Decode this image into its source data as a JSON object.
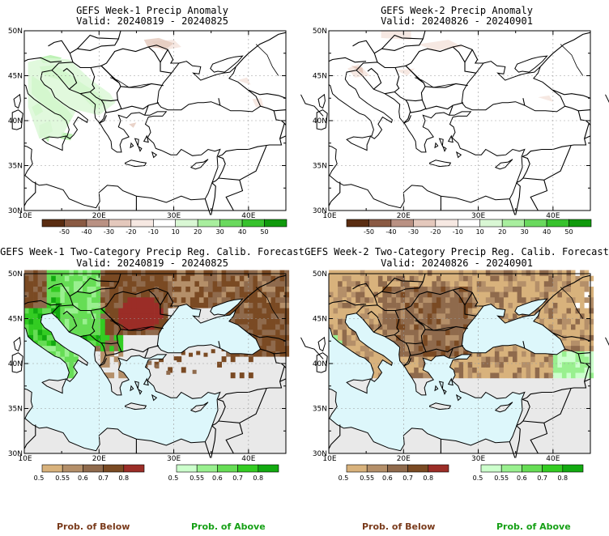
{
  "panels": [
    {
      "id": "p1",
      "title": "GEFS Week-1 Precip Anomaly",
      "valid": "Valid: 20240819 - 20240825",
      "kind": "anomaly"
    },
    {
      "id": "p2",
      "title": "GEFS Week-2 Precip Anomaly",
      "valid": "Valid: 20240826 - 20240901",
      "kind": "anomaly"
    },
    {
      "id": "p3",
      "title": "GEFS Week-1 Two-Category Precip Reg. Calib. Forecast",
      "valid": "Valid: 20240819 - 20240825",
      "kind": "prob"
    },
    {
      "id": "p4",
      "title": "GEFS Week-2 Two-Category Precip Reg. Calib. Forecast",
      "valid": "Valid: 20240826 - 20240901",
      "kind": "prob"
    }
  ],
  "map": {
    "lon_labels": [
      "10E",
      "20E",
      "30E",
      "40E"
    ],
    "lat_labels": [
      "50N",
      "45N",
      "40N",
      "35N",
      "30N"
    ]
  },
  "anomaly_colorbar": {
    "labels": [
      "-50",
      "-40",
      "-30",
      "-20",
      "-10",
      "10",
      "20",
      "30",
      "40",
      "50"
    ],
    "colors": [
      "#5a2d12",
      "#8a5a43",
      "#b99183",
      "#e4c8bc",
      "#f6e8e2",
      "#ffffff",
      "#d9f7d4",
      "#a8ee9e",
      "#6ad95e",
      "#37c22d",
      "#109a0d"
    ]
  },
  "prob_below_colorbar": {
    "labels": [
      "0.5",
      "0.55",
      "0.6",
      "0.7",
      "0.8"
    ],
    "colors": [
      "#d8b27c",
      "#b48f69",
      "#8f6a4c",
      "#7a4a23",
      "#9b2d27"
    ]
  },
  "prob_above_colorbar": {
    "labels": [
      "0.5",
      "0.55",
      "0.6",
      "0.7",
      "0.8"
    ],
    "colors": [
      "#ccffcc",
      "#99f08f",
      "#66dd55",
      "#33cc22",
      "#12aa10"
    ]
  },
  "footer": {
    "below": "Prob. of Below",
    "above": "Prob. of Above"
  },
  "colors": {
    "sea": "#ddf7fb",
    "land_missing": "#e9e9e9",
    "border": "#000000",
    "grid": "#9a9a9a"
  }
}
